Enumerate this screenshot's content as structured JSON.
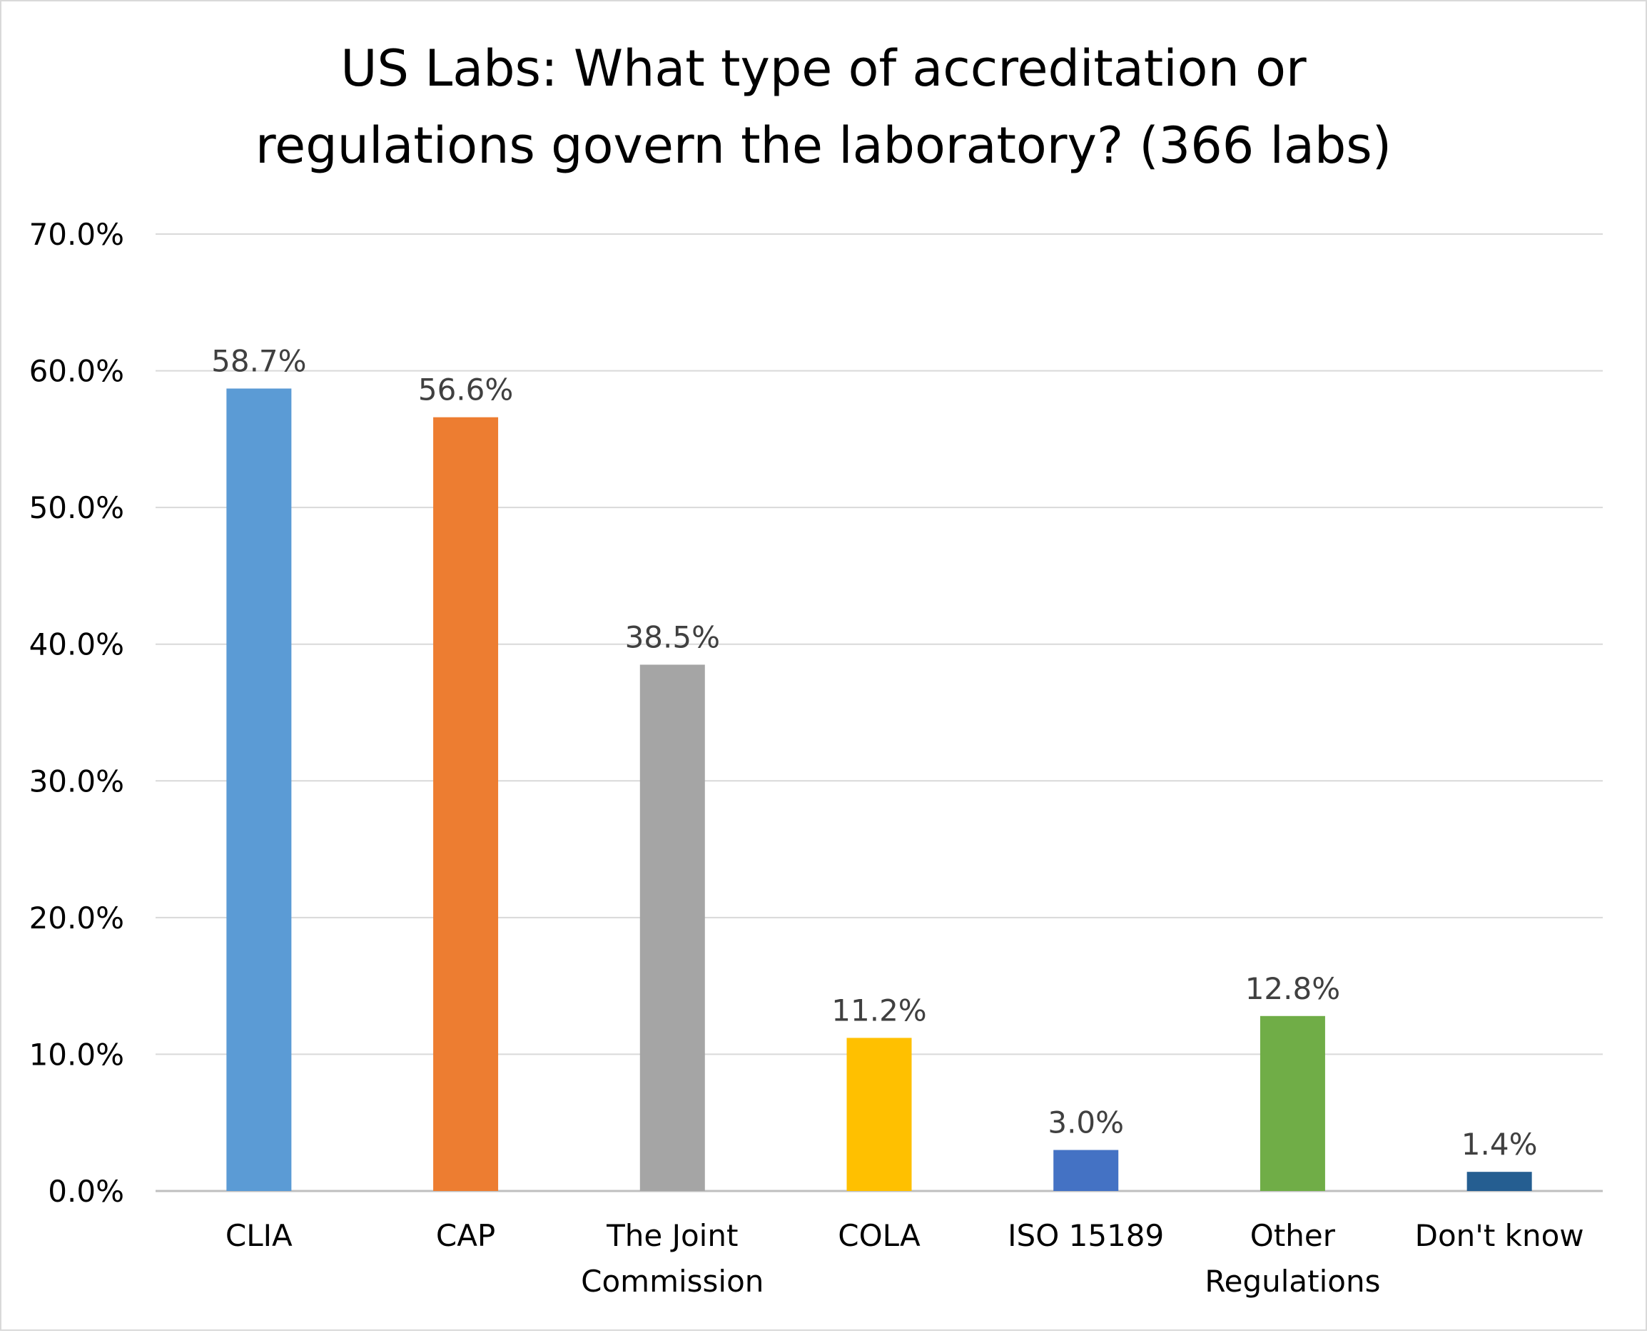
{
  "chart_data": {
    "type": "bar",
    "title_lines": [
      "US Labs: What type of accreditation or",
      "regulations govern the laboratory? (366 labs)"
    ],
    "categories": [
      [
        "CLIA"
      ],
      [
        "CAP"
      ],
      [
        "The Joint",
        "Commission"
      ],
      [
        "COLA"
      ],
      [
        "ISO 15189"
      ],
      [
        "Other",
        "Regulations"
      ],
      [
        "Don't know"
      ]
    ],
    "values": [
      58.7,
      56.6,
      38.5,
      11.2,
      3.0,
      12.8,
      1.4
    ],
    "data_labels": [
      "58.7%",
      "56.6%",
      "38.5%",
      "11.2%",
      "3.0%",
      "12.8%",
      "1.4%"
    ],
    "colors": [
      "#5B9BD5",
      "#ED7D31",
      "#A5A5A5",
      "#FFC000",
      "#4472C4",
      "#70AD47",
      "#255E91"
    ],
    "ylim": [
      0,
      70
    ],
    "yticks": [
      "0.0%",
      "10.0%",
      "20.0%",
      "30.0%",
      "40.0%",
      "50.0%",
      "60.0%",
      "70.0%"
    ],
    "xlabel": "",
    "ylabel": "",
    "grid": true,
    "legend": "none"
  }
}
